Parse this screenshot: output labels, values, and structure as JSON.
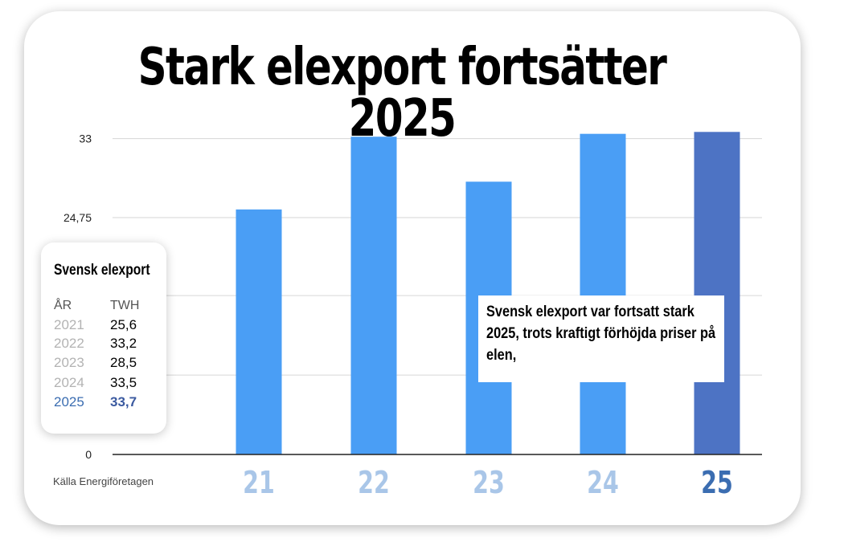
{
  "title": "Stark elexport fortsätter 2025",
  "chart_data": {
    "type": "bar",
    "categories": [
      "21",
      "22",
      "23",
      "24",
      "25"
    ],
    "values": [
      25.6,
      33.2,
      28.5,
      33.5,
      33.7
    ],
    "ylim": [
      0,
      33.7
    ],
    "yticks": [
      "0",
      "24,75",
      "33"
    ],
    "colors": [
      "#4a9ef5",
      "#4a9ef5",
      "#4a9ef5",
      "#4a9ef5",
      "#4d73c4"
    ],
    "category_colors": [
      "#a9c6e8",
      "#a9c6e8",
      "#a9c6e8",
      "#a9c6e8",
      "#3b6db1"
    ],
    "grid": true
  },
  "legend": {
    "title": "Svensk elexport",
    "col_year": "ÅR",
    "col_value": "TWH",
    "rows": [
      {
        "year": "2021",
        "value": "25,6"
      },
      {
        "year": "2022",
        "value": "33,2"
      },
      {
        "year": "2023",
        "value": "28,5"
      },
      {
        "year": "2024",
        "value": "33,5"
      },
      {
        "year": "2025",
        "value": "33,7"
      }
    ]
  },
  "callout": "Svensk elexport var fortsatt stark 2025, trots kraftigt förhöjda priser på elen,",
  "source": "Källa Energiföretagen"
}
